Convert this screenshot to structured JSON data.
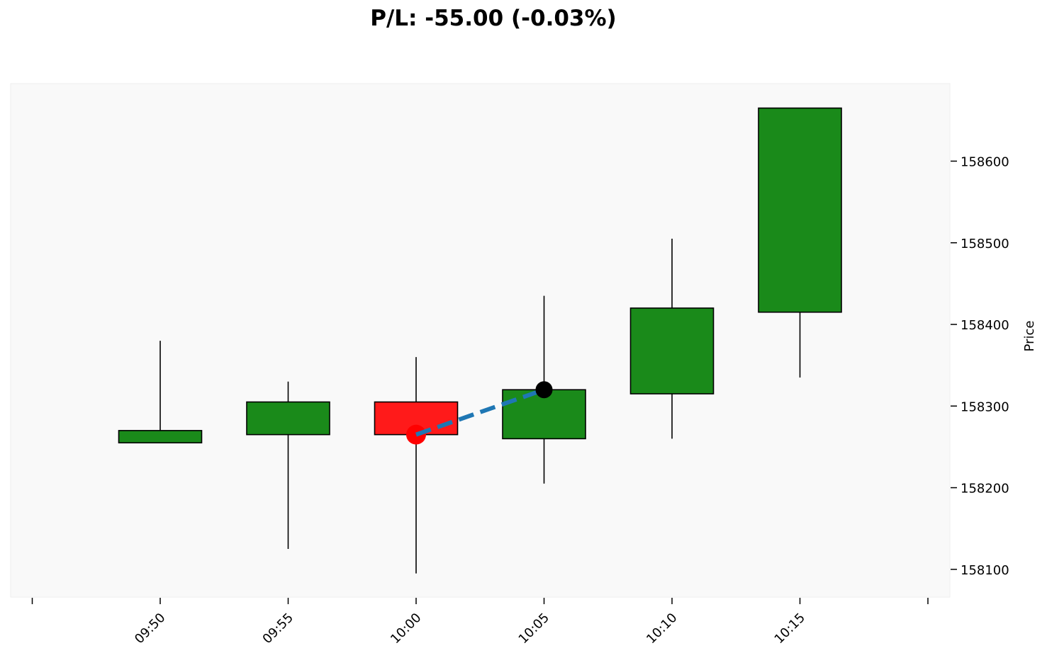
{
  "chart_data": {
    "type": "candlestick",
    "title": "P/L: -55.00 (-0.03%)",
    "ylabel": "Price",
    "xlabel": "",
    "x": [
      "09:50",
      "09:55",
      "10:00",
      "10:05",
      "10:10",
      "10:15"
    ],
    "candles": [
      {
        "x": "09:50",
        "open": 158255,
        "high": 158380,
        "low": 158255,
        "close": 158270
      },
      {
        "x": "09:55",
        "open": 158265,
        "high": 158330,
        "low": 158125,
        "close": 158305
      },
      {
        "x": "10:00",
        "open": 158305,
        "high": 158360,
        "low": 158095,
        "close": 158265
      },
      {
        "x": "10:05",
        "open": 158260,
        "high": 158435,
        "low": 158205,
        "close": 158320
      },
      {
        "x": "10:10",
        "open": 158315,
        "high": 158505,
        "low": 158260,
        "close": 158420
      },
      {
        "x": "10:15",
        "open": 158415,
        "high": 158665,
        "low": 158335,
        "close": 158665
      }
    ],
    "trade": {
      "entry": {
        "x": "10:00",
        "price": 158265
      },
      "exit": {
        "x": "10:05",
        "price": 158320
      }
    },
    "yticks": [
      158100,
      158200,
      158300,
      158400,
      158500,
      158600
    ],
    "ylim": [
      158066,
      158695
    ],
    "y_axis_position": "right",
    "grid": false,
    "colors": {
      "up": "#1a8a1a",
      "down": "#ff1a1a",
      "entry_marker": "#ff0000",
      "exit_marker": "#000000",
      "trade_line": "#1f77b4",
      "plot_background": "#f9f9f9"
    }
  }
}
